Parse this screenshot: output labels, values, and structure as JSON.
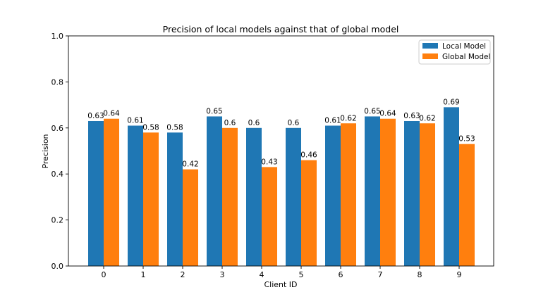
{
  "chart_data": {
    "type": "bar",
    "title": "Precision of local models against that of global model",
    "xlabel": "Client ID",
    "ylabel": "Precision",
    "categories": [
      "0",
      "1",
      "2",
      "3",
      "4",
      "5",
      "6",
      "7",
      "8",
      "9"
    ],
    "ylim": [
      0.0,
      1.0
    ],
    "yticks": [
      "0.0",
      "0.2",
      "0.4",
      "0.6",
      "0.8",
      "1.0"
    ],
    "grid": false,
    "legend_position": "top-right",
    "series": [
      {
        "name": "Local Model",
        "color": "#1f77b4",
        "values": [
          0.63,
          0.61,
          0.58,
          0.65,
          0.6,
          0.6,
          0.61,
          0.65,
          0.63,
          0.69
        ],
        "labels": [
          "0.63",
          "0.61",
          "0.58",
          "0.65",
          "0.6",
          "0.6",
          "0.61",
          "0.65",
          "0.63",
          "0.69"
        ]
      },
      {
        "name": "Global Model",
        "color": "#ff7f0e",
        "values": [
          0.64,
          0.58,
          0.42,
          0.6,
          0.43,
          0.46,
          0.62,
          0.64,
          0.62,
          0.53
        ],
        "labels": [
          "0.64",
          "0.58",
          "0.42",
          "0.6",
          "0.43",
          "0.46",
          "0.62",
          "0.64",
          "0.62",
          "0.53"
        ]
      }
    ]
  }
}
